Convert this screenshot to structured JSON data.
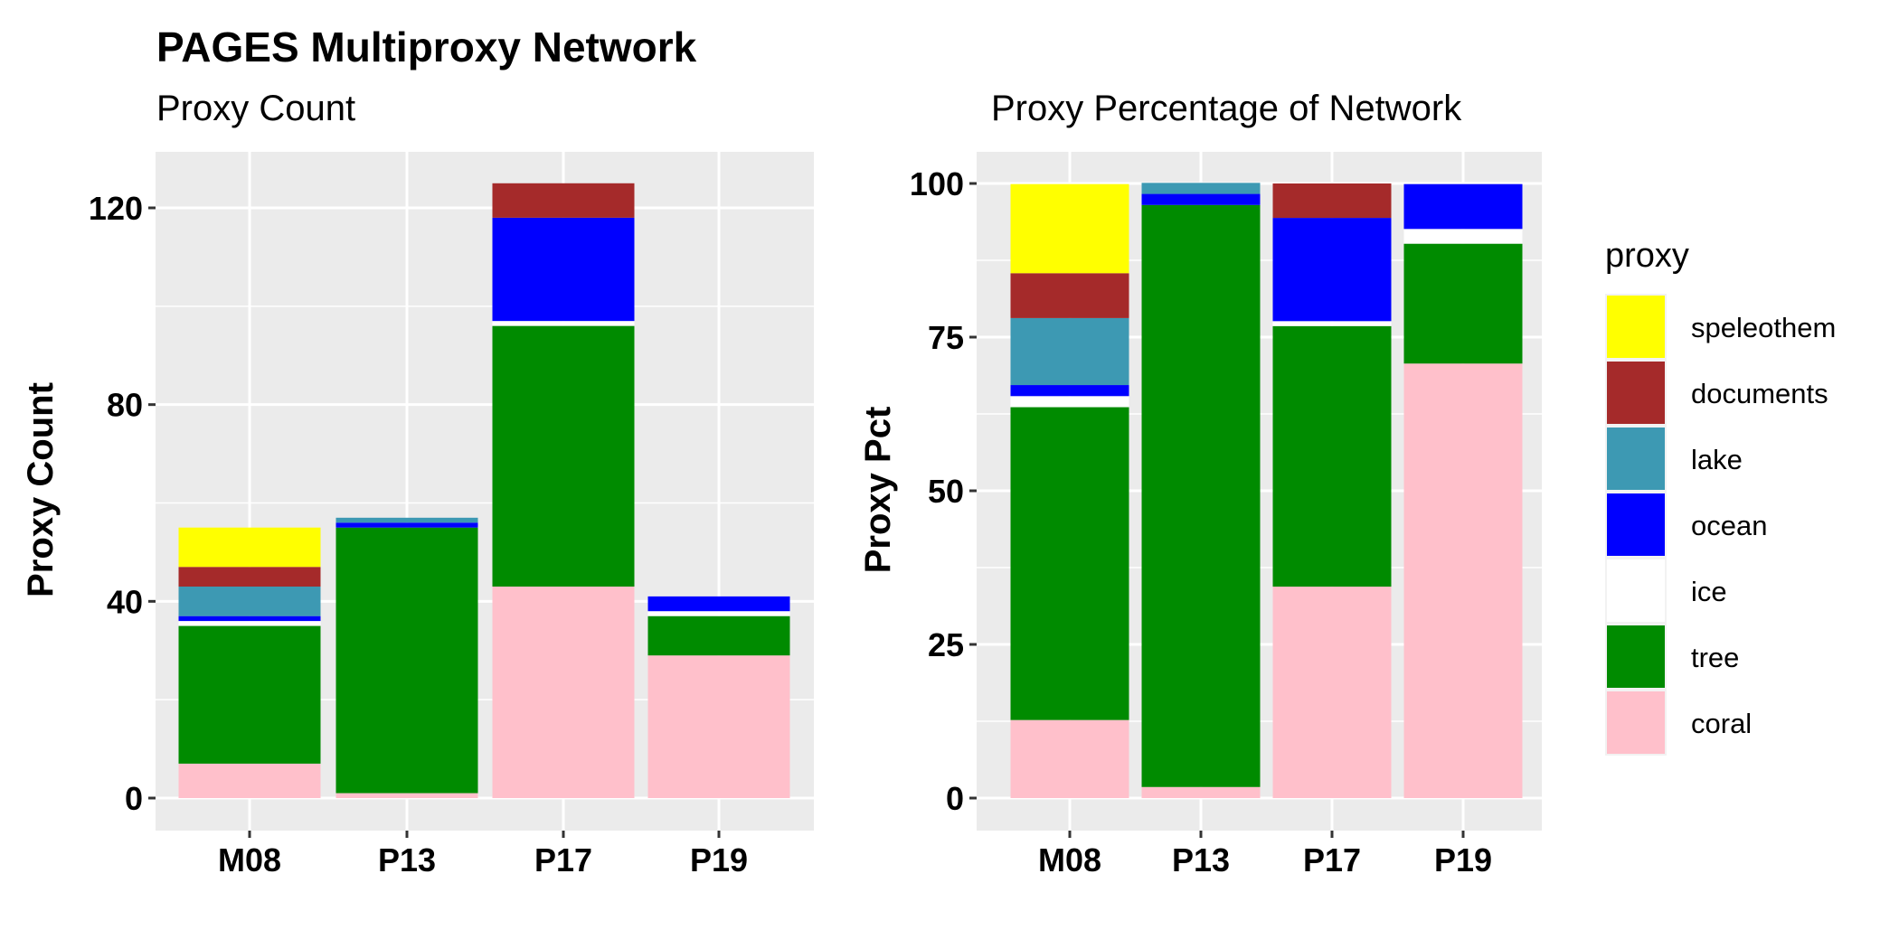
{
  "title": "PAGES Multiproxy Network",
  "legend": {
    "title": "proxy",
    "items": [
      {
        "label": "speleothem",
        "color": "#FFFF00"
      },
      {
        "label": "documents",
        "color": "#A52A2A"
      },
      {
        "label": "lake",
        "color": "#3D99B3"
      },
      {
        "label": "ocean",
        "color": "#0000FF"
      },
      {
        "label": "ice",
        "color": "#FFFFFF"
      },
      {
        "label": "tree",
        "color": "#008B00"
      },
      {
        "label": "coral",
        "color": "#FFC0CB"
      }
    ]
  },
  "chart_data": [
    {
      "type": "bar",
      "stacked": true,
      "title": "Proxy Count",
      "xlabel": "",
      "ylabel": "Proxy Count",
      "ylim": [
        0,
        130
      ],
      "yticks": [
        0,
        40,
        80,
        120
      ],
      "grid": true,
      "categories": [
        "M08",
        "P13",
        "P17",
        "P19"
      ],
      "series": [
        {
          "name": "coral",
          "values": [
            7,
            1,
            43,
            29
          ]
        },
        {
          "name": "tree",
          "values": [
            28,
            54,
            53,
            8
          ]
        },
        {
          "name": "ice",
          "values": [
            1,
            0,
            1,
            1
          ]
        },
        {
          "name": "ocean",
          "values": [
            1,
            1,
            21,
            3
          ]
        },
        {
          "name": "lake",
          "values": [
            6,
            1,
            0,
            0
          ]
        },
        {
          "name": "documents",
          "values": [
            4,
            0,
            7,
            0
          ]
        },
        {
          "name": "speleothem",
          "values": [
            8,
            0,
            0,
            0
          ]
        }
      ]
    },
    {
      "type": "bar",
      "stacked": true,
      "title": "Proxy Percentage of Network",
      "xlabel": "",
      "ylabel": "Proxy Pct",
      "ylim": [
        0,
        104.5
      ],
      "yticks": [
        0,
        25,
        50,
        75,
        100
      ],
      "grid": true,
      "legend_position": "right",
      "categories": [
        "M08",
        "P13",
        "P17",
        "P19"
      ],
      "series": [
        {
          "name": "coral",
          "values": [
            12.7,
            1.8,
            34.4,
            70.7
          ]
        },
        {
          "name": "tree",
          "values": [
            50.9,
            94.7,
            42.4,
            19.5
          ]
        },
        {
          "name": "ice",
          "values": [
            1.8,
            0,
            0.8,
            2.4
          ]
        },
        {
          "name": "ocean",
          "values": [
            1.8,
            1.8,
            16.8,
            7.3
          ]
        },
        {
          "name": "lake",
          "values": [
            10.9,
            1.8,
            0,
            0
          ]
        },
        {
          "name": "documents",
          "values": [
            7.3,
            0,
            5.6,
            0
          ]
        },
        {
          "name": "speleothem",
          "values": [
            14.5,
            0,
            0,
            0
          ]
        }
      ]
    }
  ]
}
